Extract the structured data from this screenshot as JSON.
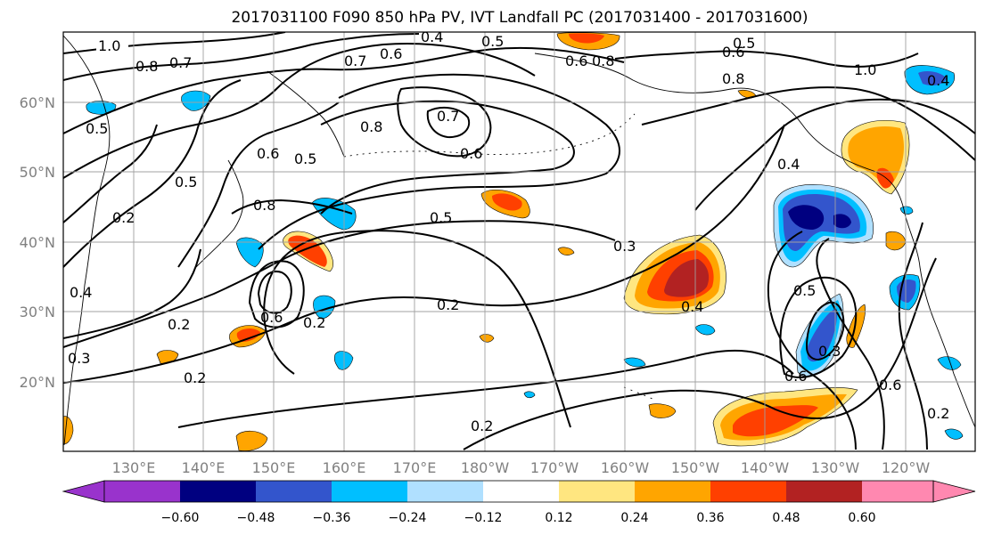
{
  "title": "2017031100 F090 850 hPa PV, IVT Landfall PC (2017031400 - 2017031600)",
  "axes": {
    "lat_labels": [
      {
        "label": "60°N",
        "lat": 60
      },
      {
        "label": "50°N",
        "lat": 50
      },
      {
        "label": "40°N",
        "lat": 40
      },
      {
        "label": "30°N",
        "lat": 30
      },
      {
        "label": "20°N",
        "lat": 20
      }
    ],
    "lon_labels": [
      {
        "label": "130°E",
        "lon": 130
      },
      {
        "label": "140°E",
        "lon": 140
      },
      {
        "label": "150°E",
        "lon": 150
      },
      {
        "label": "160°E",
        "lon": 160
      },
      {
        "label": "170°E",
        "lon": 170
      },
      {
        "label": "180°W",
        "lon": 180
      },
      {
        "label": "170°W",
        "lon": 190
      },
      {
        "label": "160°W",
        "lon": 200
      },
      {
        "label": "150°W",
        "lon": 210
      },
      {
        "label": "140°W",
        "lon": 220
      },
      {
        "label": "130°W",
        "lon": 230
      },
      {
        "label": "120°W",
        "lon": 240
      }
    ],
    "lon_range": [
      120,
      250
    ],
    "lat_range": [
      10,
      70
    ],
    "grid": true
  },
  "colorbar": {
    "colors": [
      "#9933cc",
      "#000080",
      "#3355cc",
      "#00bfff",
      "#b0e0ff",
      "#ffffff",
      "#ffe680",
      "#ffa500",
      "#ff4000",
      "#b22222",
      "#ff88b0"
    ],
    "tick_labels": [
      "−0.60",
      "−0.48",
      "−0.36",
      "−0.24",
      "−0.12",
      "0.12",
      "0.24",
      "0.36",
      "0.48",
      "0.60"
    ],
    "extend": "both"
  },
  "contour_labels": [
    "1.0",
    "0.8",
    "0.7",
    "0.4",
    "0.5",
    "0.6",
    "0.7",
    "0.6",
    "0.8",
    "0.5",
    "0.6",
    "0.8",
    "1.0",
    "0.5",
    "0.6",
    "0.5",
    "0.8",
    "0.7",
    "0.6",
    "0.5",
    "0.8",
    "0.2",
    "0.5",
    "0.3",
    "0.4",
    "0.4",
    "0.6",
    "0.2",
    "0.2",
    "0.2",
    "0.3",
    "0.2",
    "0.2",
    "0.4",
    "0.5",
    "0.3",
    "0.6",
    "0.6",
    "0.2",
    "0.4"
  ],
  "anomaly_patches": [
    {
      "polarity": "positive",
      "level": "0.48",
      "lon": 212,
      "lat": 35
    },
    {
      "polarity": "positive",
      "level": "0.36",
      "lon": 218,
      "lat": 14
    },
    {
      "polarity": "positive",
      "level": "0.36",
      "lon": 234,
      "lat": 52
    },
    {
      "polarity": "positive",
      "level": "0.36",
      "lon": 156,
      "lat": 39
    },
    {
      "polarity": "positive",
      "level": "0.36",
      "lon": 184,
      "lat": 46
    },
    {
      "polarity": "positive",
      "level": "0.24",
      "lon": 196,
      "lat": 68
    },
    {
      "polarity": "positive",
      "level": "0.24",
      "lon": 147,
      "lat": 26
    },
    {
      "polarity": "positive",
      "level": "0.24",
      "lon": 145,
      "lat": 12
    },
    {
      "polarity": "positive",
      "level": "0.24",
      "lon": 234,
      "lat": 29
    },
    {
      "polarity": "positive",
      "level": "0.24",
      "lon": 241,
      "lat": 38
    },
    {
      "polarity": "negative",
      "level": "-0.48",
      "lon": 226,
      "lat": 43
    },
    {
      "polarity": "negative",
      "level": "-0.36",
      "lon": 229,
      "lat": 27
    },
    {
      "polarity": "negative",
      "level": "-0.36",
      "lon": 243,
      "lat": 32
    },
    {
      "polarity": "negative",
      "level": "-0.24",
      "lon": 161,
      "lat": 43
    },
    {
      "polarity": "negative",
      "level": "-0.24",
      "lon": 145,
      "lat": 38
    },
    {
      "polarity": "negative",
      "level": "-0.24",
      "lon": 127,
      "lat": 60
    },
    {
      "polarity": "negative",
      "level": "-0.24",
      "lon": 139,
      "lat": 61
    },
    {
      "polarity": "negative",
      "level": "-0.24",
      "lon": 244,
      "lat": 63
    },
    {
      "polarity": "negative",
      "level": "-0.24",
      "lon": 160,
      "lat": 21
    },
    {
      "polarity": "negative",
      "level": "-0.24",
      "lon": 247,
      "lat": 13
    },
    {
      "polarity": "negative",
      "level": "-0.24",
      "lon": 211,
      "lat": 26
    },
    {
      "polarity": "negative",
      "level": "-0.24",
      "lon": 158,
      "lat": 32
    }
  ]
}
